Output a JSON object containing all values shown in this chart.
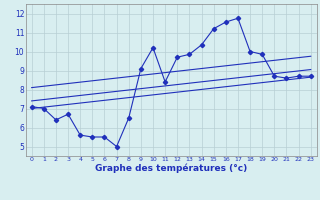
{
  "hours": [
    0,
    1,
    2,
    3,
    4,
    5,
    6,
    7,
    8,
    9,
    10,
    11,
    12,
    13,
    14,
    15,
    16,
    17,
    18,
    19,
    20,
    21,
    22,
    23
  ],
  "temp": [
    7.1,
    7.0,
    6.4,
    6.7,
    5.6,
    5.5,
    5.5,
    5.0,
    6.5,
    9.1,
    10.2,
    8.4,
    9.7,
    9.85,
    10.35,
    11.2,
    11.55,
    11.75,
    10.0,
    9.85,
    8.7,
    8.6,
    8.7,
    8.7
  ],
  "line_color": "#2030bb",
  "bg_color": "#d8eef0",
  "grid_color": "#b8cfd4",
  "xlabel": "Graphe des températures (°c)",
  "ylim": [
    4.5,
    12.5
  ],
  "xlim": [
    -0.5,
    23.5
  ],
  "yticks": [
    5,
    6,
    7,
    8,
    9,
    10,
    11,
    12
  ],
  "xticks": [
    0,
    1,
    2,
    3,
    4,
    5,
    6,
    7,
    8,
    9,
    10,
    11,
    12,
    13,
    14,
    15,
    16,
    17,
    18,
    19,
    20,
    21,
    22,
    23
  ],
  "reg_lines": [
    [
      7.0,
      8.65
    ],
    [
      7.4,
      9.05
    ],
    [
      8.1,
      9.75
    ]
  ]
}
